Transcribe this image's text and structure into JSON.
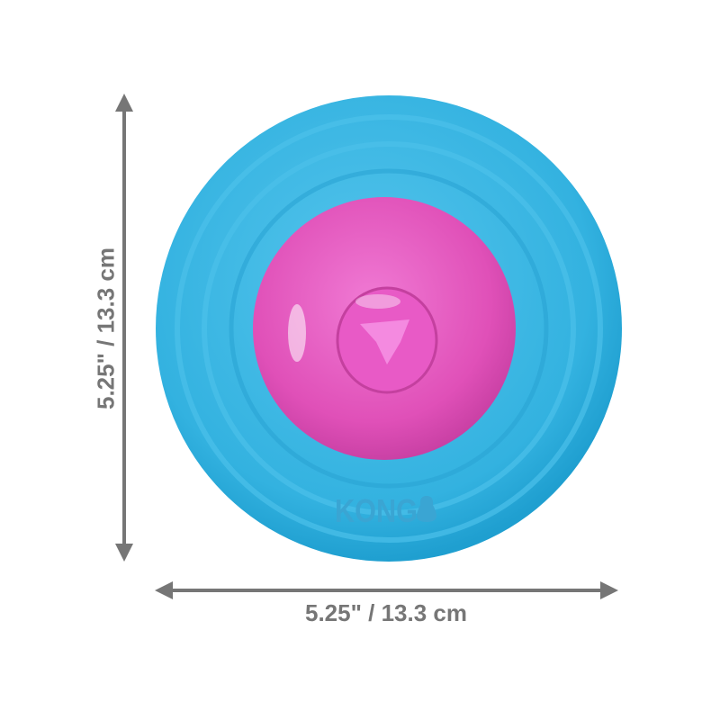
{
  "product": {
    "logo_text": "KONG",
    "colors": {
      "body": "#2fb0de",
      "ball": "#e052b8",
      "dimension_lines": "#767676"
    }
  },
  "dimensions": {
    "width_label": "5.25\" / 13.3 cm",
    "height_label": "5.25\" / 13.3 cm"
  }
}
